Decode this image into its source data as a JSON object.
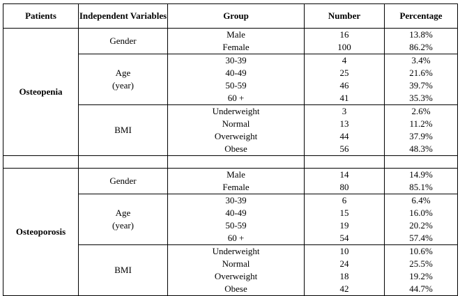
{
  "headers": {
    "patients": "Patients",
    "variables": "Independent Variables",
    "group": "Group",
    "number": "Number",
    "percentage": "Percentage"
  },
  "sections": [
    {
      "patient": "Osteopenia",
      "variables": [
        {
          "name": "Gender",
          "groups": [
            "Male",
            "Female"
          ],
          "numbers": [
            "16",
            "100"
          ],
          "percentages": [
            "13.8%",
            "86.2%"
          ]
        },
        {
          "name_lines": [
            "Age",
            "(year)"
          ],
          "groups": [
            "30-39",
            "40-49",
            "50-59",
            "60 +"
          ],
          "numbers": [
            "4",
            "25",
            "46",
            "41"
          ],
          "percentages": [
            "3.4%",
            "21.6%",
            "39.7%",
            "35.3%"
          ]
        },
        {
          "name": "BMI",
          "groups": [
            "Underweight",
            "Normal",
            "Overweight",
            "Obese"
          ],
          "numbers": [
            "3",
            "13",
            "44",
            "56"
          ],
          "percentages": [
            "2.6%",
            "11.2%",
            "37.9%",
            "48.3%"
          ]
        }
      ]
    },
    {
      "patient": "Osteoporosis",
      "variables": [
        {
          "name": "Gender",
          "groups": [
            "Male",
            "Female"
          ],
          "numbers": [
            "14",
            "80"
          ],
          "percentages": [
            "14.9%",
            "85.1%"
          ]
        },
        {
          "name_lines": [
            "Age",
            "(year)"
          ],
          "groups": [
            "30-39",
            "40-49",
            "50-59",
            "60 +"
          ],
          "numbers": [
            "6",
            "15",
            "19",
            "54"
          ],
          "percentages": [
            "6.4%",
            "16.0%",
            "20.2%",
            "57.4%"
          ]
        },
        {
          "name": "BMI",
          "groups": [
            "Underweight",
            "Normal",
            "Overweight",
            "Obese"
          ],
          "numbers": [
            "10",
            "24",
            "18",
            "42"
          ],
          "percentages": [
            "10.6%",
            "25.5%",
            "19.2%",
            "44.7%"
          ]
        }
      ]
    }
  ]
}
